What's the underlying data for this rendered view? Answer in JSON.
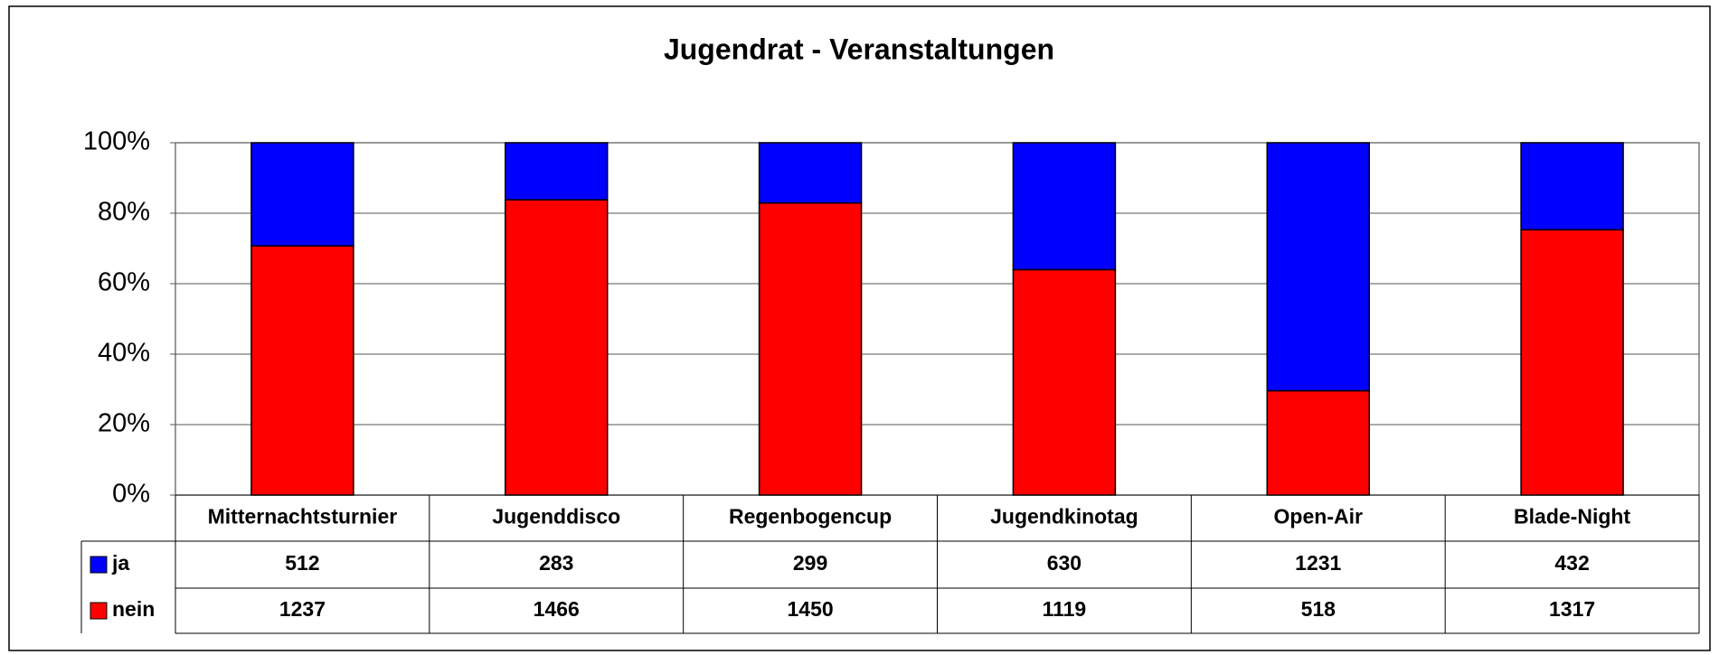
{
  "chart_data": {
    "type": "bar",
    "stacked": "percent",
    "title": "Jugendrat - Veranstaltungen",
    "categories": [
      "Mitternachtsturnier",
      "Jugenddisco",
      "Regenbogencup",
      "Jugendkinotag",
      "Open-Air",
      "Blade-Night"
    ],
    "series": [
      {
        "name": "ja",
        "color": "#0000ff",
        "values": [
          512,
          283,
          299,
          630,
          1231,
          432
        ]
      },
      {
        "name": "nein",
        "color": "#ff0000",
        "values": [
          1237,
          1466,
          1450,
          1119,
          518,
          1317
        ]
      }
    ],
    "ylim": [
      0,
      100
    ],
    "yticks": [
      {
        "value": 0,
        "label": "0%"
      },
      {
        "value": 20,
        "label": "20%"
      },
      {
        "value": 40,
        "label": "40%"
      },
      {
        "value": 60,
        "label": "60%"
      },
      {
        "value": 80,
        "label": "80%"
      },
      {
        "value": 100,
        "label": "100%"
      }
    ],
    "grid": true,
    "data_table": true
  }
}
